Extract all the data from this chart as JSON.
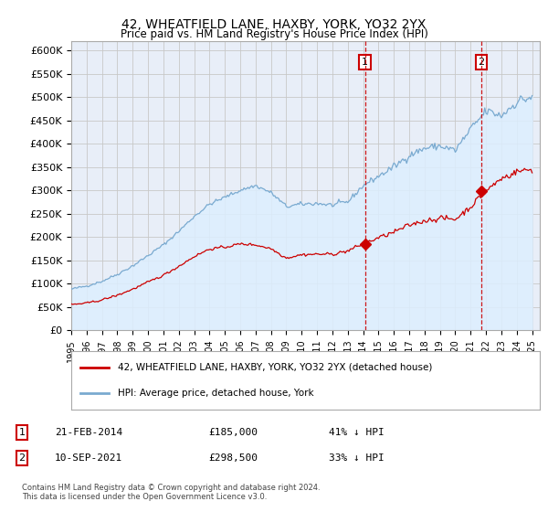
{
  "title": "42, WHEATFIELD LANE, HAXBY, YORK, YO32 2YX",
  "subtitle": "Price paid vs. HM Land Registry's House Price Index (HPI)",
  "ylabel_ticks": [
    "£0",
    "£50K",
    "£100K",
    "£150K",
    "£200K",
    "£250K",
    "£300K",
    "£350K",
    "£400K",
    "£450K",
    "£500K",
    "£550K",
    "£600K"
  ],
  "ytick_values": [
    0,
    50000,
    100000,
    150000,
    200000,
    250000,
    300000,
    350000,
    400000,
    450000,
    500000,
    550000,
    600000
  ],
  "ylim": [
    0,
    620000
  ],
  "xlim_start": 1995.0,
  "xlim_end": 2025.5,
  "xtick_labels": [
    "1995",
    "1996",
    "1997",
    "1998",
    "1999",
    "2000",
    "2001",
    "2002",
    "2003",
    "2004",
    "2005",
    "2006",
    "2007",
    "2008",
    "2009",
    "2010",
    "2011",
    "2012",
    "2013",
    "2014",
    "2015",
    "2016",
    "2017",
    "2018",
    "2019",
    "2020",
    "2021",
    "2022",
    "2023",
    "2024",
    "2025"
  ],
  "transaction1_x": 2014.13,
  "transaction1_y": 185000,
  "transaction1_label": "21-FEB-2014",
  "transaction1_price": "£185,000",
  "transaction1_pct": "41% ↓ HPI",
  "transaction2_x": 2021.69,
  "transaction2_y": 298500,
  "transaction2_label": "10-SEP-2021",
  "transaction2_price": "£298,500",
  "transaction2_pct": "33% ↓ HPI",
  "property_color": "#cc0000",
  "hpi_color": "#7aaad0",
  "hpi_fill_color": "#ddeeff",
  "background_color": "#ffffff",
  "plot_bg_color": "#e8eef8",
  "grid_color": "#c8c8c8",
  "legend_property": "42, WHEATFIELD LANE, HAXBY, YORK, YO32 2YX (detached house)",
  "legend_hpi": "HPI: Average price, detached house, York",
  "footer": "Contains HM Land Registry data © Crown copyright and database right 2024.\nThis data is licensed under the Open Government Licence v3.0.",
  "note1_num": "1",
  "note2_num": "2",
  "hpi_annual": [
    88000,
    95000,
    105000,
    120000,
    138000,
    160000,
    183000,
    212000,
    244000,
    270000,
    285000,
    300000,
    310000,
    295000,
    265000,
    270000,
    272000,
    268000,
    275000,
    310000,
    330000,
    350000,
    375000,
    390000,
    395000,
    385000,
    430000,
    470000,
    460000,
    490000,
    500000
  ],
  "prop_annual": [
    55000,
    58000,
    65000,
    75000,
    88000,
    103000,
    118000,
    137000,
    158000,
    174000,
    178000,
    185000,
    183000,
    175000,
    155000,
    162000,
    163000,
    163000,
    170000,
    185000,
    198000,
    210000,
    225000,
    235000,
    240000,
    238000,
    265000,
    298500,
    325000,
    340000,
    345000
  ]
}
